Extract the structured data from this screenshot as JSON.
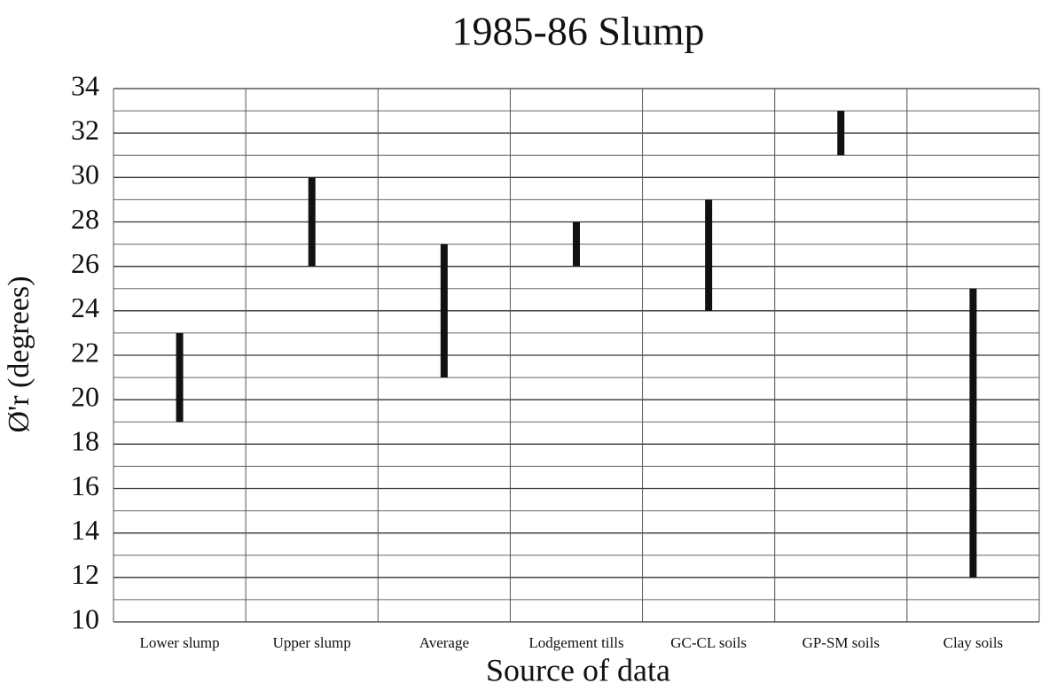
{
  "chart_data": {
    "type": "range",
    "title": "1985-86 Slump",
    "x_label": "Source of data",
    "y_label": "Ø'r (degrees)",
    "categories": [
      "Lower slump",
      "Upper slump",
      "Average",
      "Lodgement tills",
      "GC-CL soils",
      "GP-SM soils",
      "Clay soils"
    ],
    "low": [
      19,
      26,
      21,
      26,
      24,
      31,
      12
    ],
    "high": [
      23,
      30,
      27,
      28,
      29,
      33,
      25
    ],
    "color": "#111111",
    "ylim": [
      10,
      34
    ],
    "yticks": [
      10,
      12,
      14,
      16,
      18,
      20,
      22,
      24,
      26,
      28,
      30,
      32,
      34
    ],
    "minor_yticks": [
      11,
      13,
      15,
      17,
      19,
      21,
      23,
      25,
      27,
      29,
      31,
      33
    ],
    "grid": true
  }
}
